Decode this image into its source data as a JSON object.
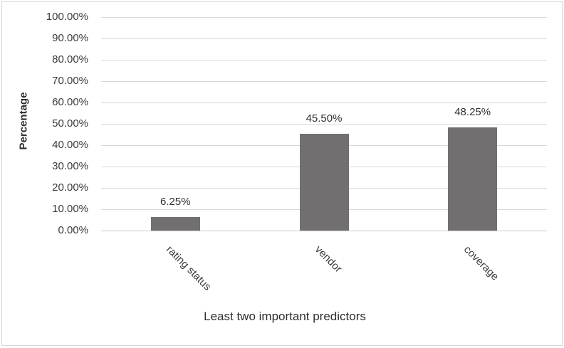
{
  "chart_data": {
    "type": "bar",
    "title": "",
    "categories": [
      "rating status",
      "vendor",
      "coverage"
    ],
    "values": [
      6.25,
      45.5,
      48.25
    ],
    "data_labels": [
      "6.25%",
      "45.50%",
      "48.25%"
    ],
    "xlabel": "Least two important predictors",
    "ylabel": "Percentage",
    "ylim": [
      0,
      100
    ],
    "ytick_step": 10,
    "ytick_labels": [
      "0.00%",
      "10.00%",
      "20.00%",
      "30.00%",
      "40.00%",
      "50.00%",
      "60.00%",
      "70.00%",
      "80.00%",
      "90.00%",
      "100.00%"
    ],
    "grid": "horizontal-on",
    "legend_position": "none",
    "bar_color": "#716f6f",
    "gridline_color": "#d9d9d9",
    "axis_line_color": "#c8c8c8",
    "text_color": "#3a3a3a"
  }
}
